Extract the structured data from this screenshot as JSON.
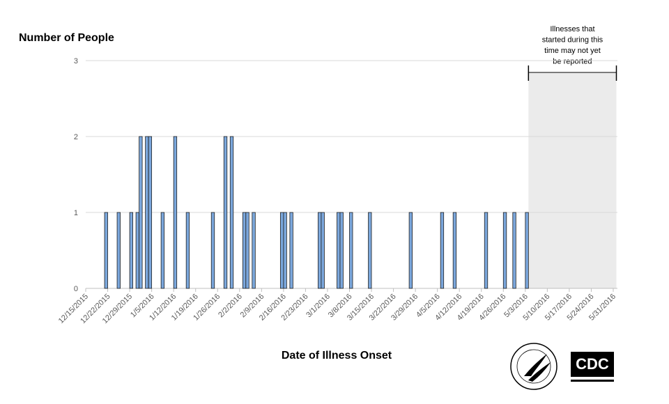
{
  "chart_data": {
    "type": "bar",
    "y_title": "Number of People",
    "x_title": "Date of Illness Onset",
    "x": [
      "12/21/2015",
      "12/25/2015",
      "12/29/2015",
      "12/31/2015",
      "1/1/2016",
      "1/3/2016",
      "1/4/2016",
      "1/8/2016",
      "1/12/2016",
      "1/16/2016",
      "1/24/2016",
      "1/28/2016",
      "1/30/2016",
      "2/3/2016",
      "2/4/2016",
      "2/6/2016",
      "2/15/2016",
      "2/16/2016",
      "2/18/2016",
      "2/27/2016",
      "2/28/2016",
      "3/4/2016",
      "3/5/2016",
      "3/8/2016",
      "3/14/2016",
      "3/27/2016",
      "4/6/2016",
      "4/10/2016",
      "4/20/2016",
      "4/26/2016",
      "4/29/2016",
      "5/3/2016"
    ],
    "values": [
      1,
      1,
      1,
      1,
      2,
      2,
      2,
      1,
      2,
      1,
      1,
      2,
      2,
      1,
      1,
      1,
      1,
      1,
      1,
      1,
      1,
      1,
      1,
      1,
      1,
      1,
      1,
      1,
      1,
      1,
      1,
      1
    ],
    "color": "#7ba7dc",
    "xlim": [
      "12/15/2015",
      "5/31/2016"
    ],
    "xticks": [
      "12/15/2015",
      "12/22/2015",
      "12/29/2015",
      "1/5/2016",
      "1/12/2016",
      "1/19/2016",
      "1/26/2016",
      "2/2/2016",
      "2/9/2016",
      "2/16/2016",
      "2/23/2016",
      "3/1/2016",
      "3/8/2016",
      "3/15/2016",
      "3/22/2016",
      "3/29/2016",
      "4/5/2016",
      "4/12/2016",
      "4/19/2016",
      "4/26/2016",
      "5/3/2016",
      "5/10/2016",
      "5/17/2016",
      "5/24/2016",
      "5/31/2016"
    ],
    "ylim": [
      0,
      3
    ],
    "yticks": [
      0,
      1,
      2,
      3
    ],
    "grid": true,
    "shaded_range": [
      "5/5/2016",
      "5/31/2016"
    ],
    "annotation": [
      "Illnesses that",
      "started during this",
      "time may not yet",
      "be reported"
    ]
  },
  "logos": {
    "cdc": "CDC"
  }
}
